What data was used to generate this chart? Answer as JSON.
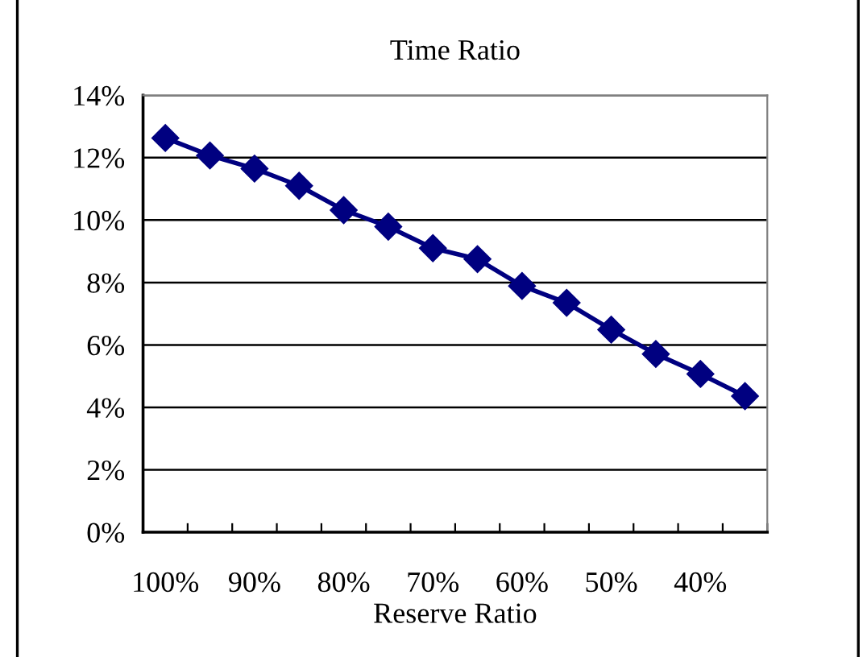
{
  "chart_data": {
    "type": "line",
    "title": "Time Ratio",
    "xlabel": "Reserve Ratio",
    "categories": [
      "100%",
      null,
      "90%",
      null,
      "80%",
      null,
      "70%",
      null,
      "60%",
      null,
      "50%",
      null,
      "40%",
      null
    ],
    "series": [
      {
        "color": "#000080",
        "values": [
          12.63,
          12.07,
          11.65,
          11.1,
          10.32,
          9.79,
          9.1,
          8.75,
          7.89,
          7.35,
          6.49,
          5.71,
          5.07,
          4.36
        ]
      }
    ],
    "ylim": [
      0,
      14
    ],
    "yticks": [
      {
        "value": 0,
        "label": "0%"
      },
      {
        "value": 2,
        "label": "2%"
      },
      {
        "value": 4,
        "label": "4%"
      },
      {
        "value": 6,
        "label": "6%"
      },
      {
        "value": 8,
        "label": "8%"
      },
      {
        "value": 10,
        "label": "10%"
      },
      {
        "value": 12,
        "label": "12%"
      },
      {
        "value": 14,
        "label": "14%"
      }
    ],
    "grid": "y",
    "marker": "diamond",
    "line_style": "solid"
  }
}
